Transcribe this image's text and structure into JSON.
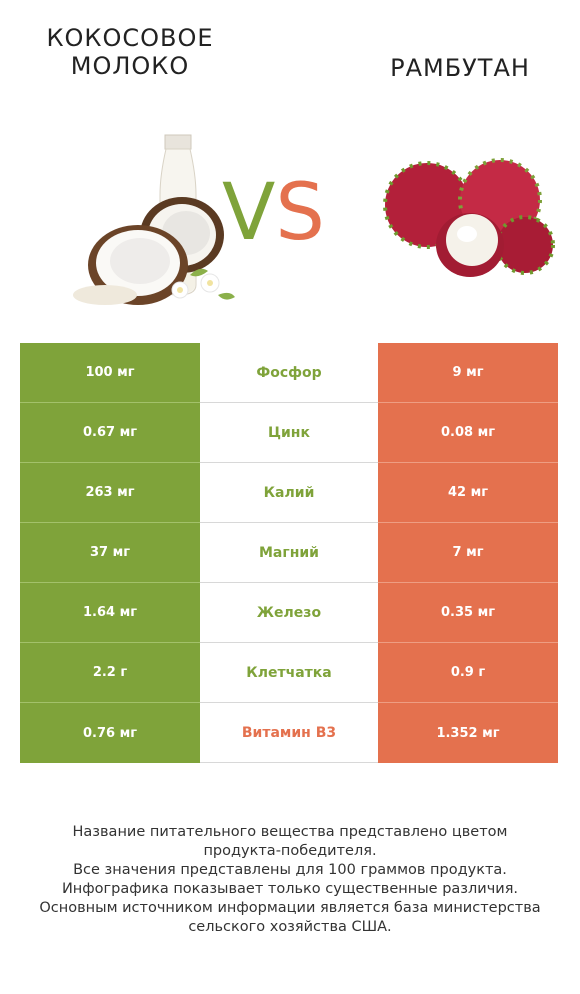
{
  "left_product": {
    "name": "КОКОСОВОЕ МОЛОКО",
    "line1": "КОКОСОВОЕ",
    "line2": "МОЛОКО",
    "color": "#7fa33a"
  },
  "right_product": {
    "name": "РАМБУТАН",
    "color": "#e4714e"
  },
  "vs": {
    "v": "V",
    "s": "S"
  },
  "rows": [
    {
      "left": "100 мг",
      "nutrient": "Фосфор",
      "right": "9 мг",
      "winner_color": "#7fa33a"
    },
    {
      "left": "0.67 мг",
      "nutrient": "Цинк",
      "right": "0.08 мг",
      "winner_color": "#7fa33a"
    },
    {
      "left": "263 мг",
      "nutrient": "Калий",
      "right": "42 мг",
      "winner_color": "#7fa33a"
    },
    {
      "left": "37 мг",
      "nutrient": "Магний",
      "right": "7 мг",
      "winner_color": "#7fa33a"
    },
    {
      "left": "1.64 мг",
      "nutrient": "Железо",
      "right": "0.35 мг",
      "winner_color": "#7fa33a"
    },
    {
      "left": "2.2 г",
      "nutrient": "Клетчатка",
      "right": "0.9 г",
      "winner_color": "#7fa33a"
    },
    {
      "left": "0.76 мг",
      "nutrient": "Витамин B3",
      "right": "1.352 мг",
      "winner_color": "#e4714e"
    }
  ],
  "footnote": {
    "line1": "Название питательного вещества представлено цветом",
    "line2": "продукта-победителя.",
    "line3": "Все значения представлены для 100 граммов продукта.",
    "line4": "Инфографика показывает только существенные различия.",
    "line5": "Основным источником информации является база министерства",
    "line6": "сельского хозяйства США."
  }
}
